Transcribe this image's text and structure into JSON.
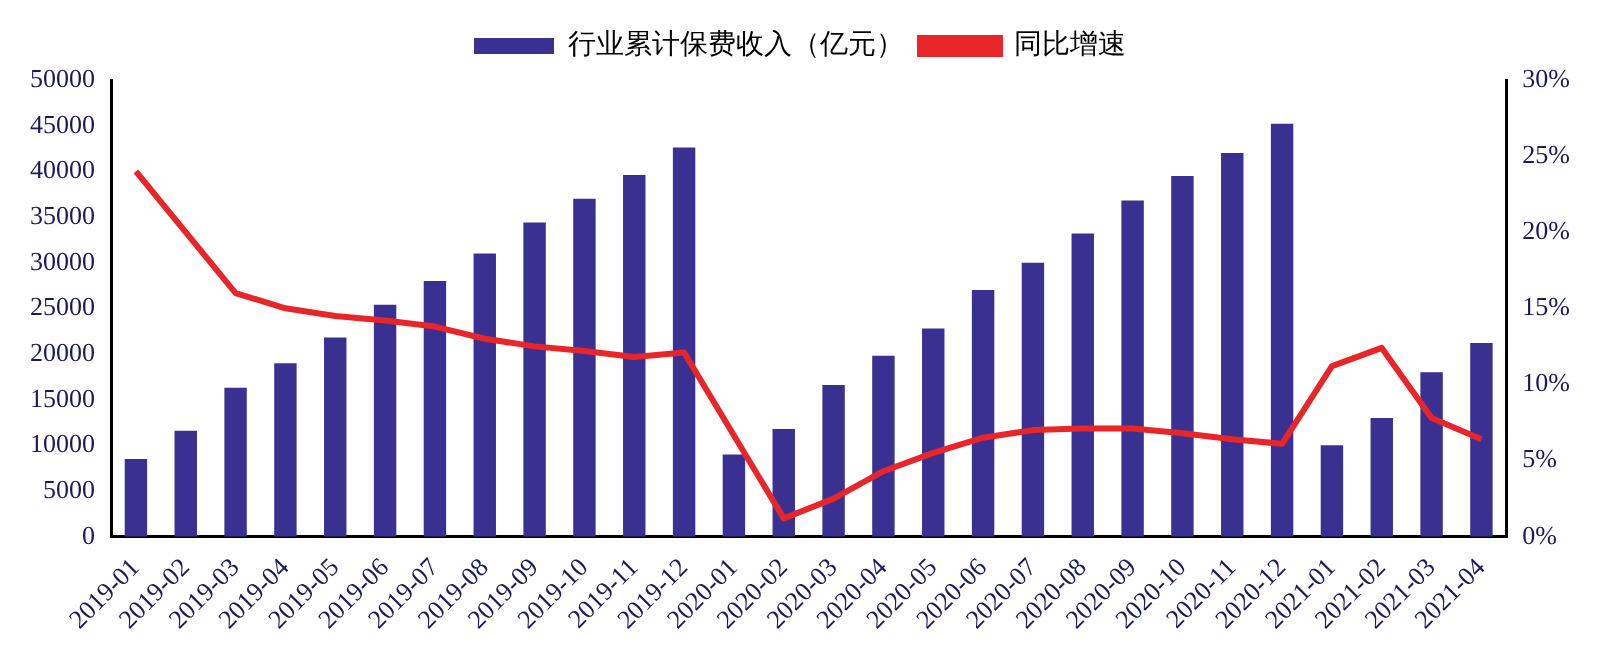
{
  "chart_data": {
    "type": "bar",
    "categories": [
      "2019-01",
      "2019-02",
      "2019-03",
      "2019-04",
      "2019-05",
      "2019-06",
      "2019-07",
      "2019-08",
      "2019-09",
      "2019-10",
      "2019-11",
      "2019-12",
      "2020-01",
      "2020-02",
      "2020-03",
      "2020-04",
      "2020-05",
      "2020-06",
      "2020-07",
      "2020-08",
      "2020-09",
      "2020-10",
      "2020-11",
      "2020-12",
      "2021-01",
      "2021-02",
      "2021-03",
      "2021-04"
    ],
    "series": [
      {
        "name": "行业累计保费收入（亿元）",
        "color": "#3a3092",
        "values": [
          8500,
          11600,
          16300,
          19000,
          21800,
          25400,
          28000,
          31000,
          34400,
          37000,
          39600,
          42600,
          9000,
          11800,
          16600,
          19800,
          22800,
          27000,
          30000,
          33200,
          36800,
          39500,
          42000,
          45200,
          10000,
          13000,
          18000,
          21200
        ]
      },
      {
        "name": "同比增速",
        "type": "line",
        "axis": "y2",
        "color": "#e8262a",
        "values": [
          24,
          null,
          16,
          15,
          14.5,
          14.2,
          13.8,
          13,
          12.5,
          12.2,
          11.8,
          12.1,
          null,
          1.2,
          2.5,
          4.3,
          5.5,
          6.5,
          7,
          7.1,
          7.1,
          6.8,
          6.4,
          6.1,
          11.2,
          12.4,
          7.8,
          6.4
        ]
      }
    ],
    "ylim": [
      0,
      50000
    ],
    "yticks": [
      0,
      5000,
      10000,
      15000,
      20000,
      25000,
      30000,
      35000,
      40000,
      45000,
      50000
    ],
    "y2lim": [
      0,
      30
    ],
    "y2ticks": [
      {
        "value": 0,
        "label": "0%"
      },
      {
        "value": 5,
        "label": "5%"
      },
      {
        "value": 10,
        "label": "10%"
      },
      {
        "value": 15,
        "label": "15%"
      },
      {
        "value": 20,
        "label": "20%"
      },
      {
        "value": 25,
        "label": "25%"
      },
      {
        "value": 30,
        "label": "30%"
      }
    ],
    "grid": false,
    "legend": "top",
    "marker": "none",
    "line_style": "solid"
  }
}
